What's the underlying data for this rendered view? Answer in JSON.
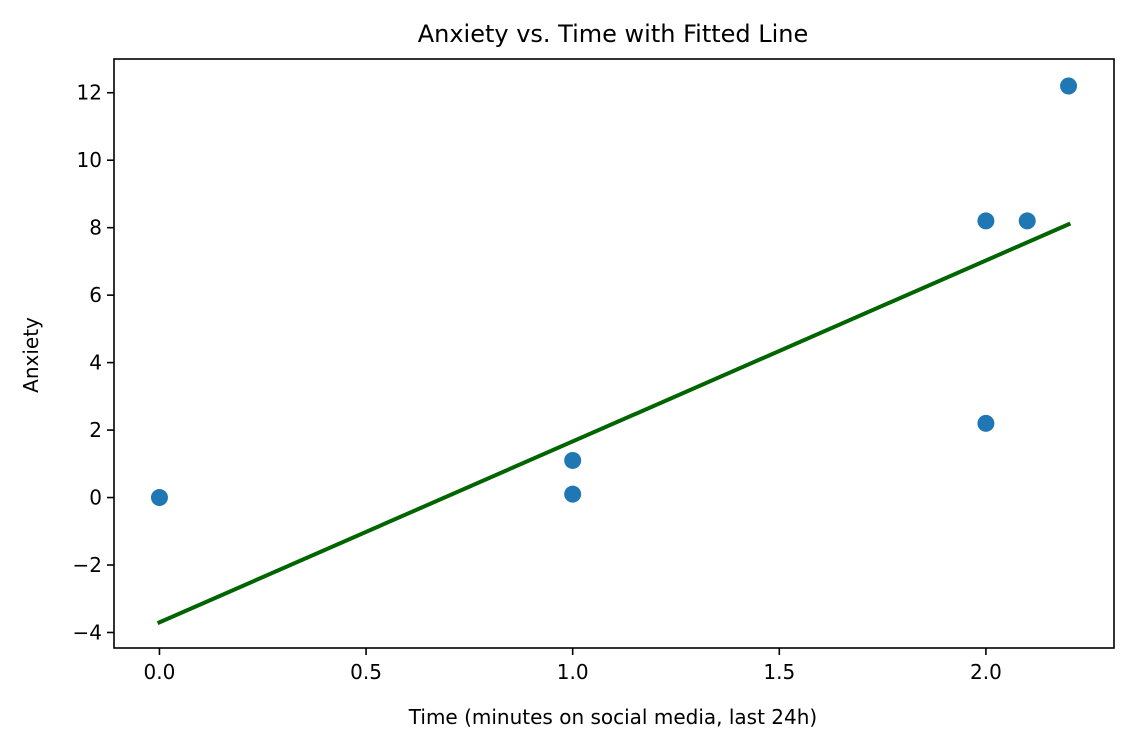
{
  "chart_data": {
    "type": "scatter",
    "title": "Anxiety vs. Time with Fitted Line",
    "xlabel": "Time (minutes on social media, last 24h)",
    "ylabel": "Anxiety",
    "xlim": [
      -0.11,
      2.31
    ],
    "ylim": [
      -4.46,
      13.0
    ],
    "x_ticks": [
      0.0,
      0.5,
      1.0,
      1.5,
      2.0
    ],
    "x_tick_labels": [
      "0.0",
      "0.5",
      "1.0",
      "1.5",
      "2.0"
    ],
    "y_ticks": [
      -4,
      -2,
      0,
      2,
      4,
      6,
      8,
      10,
      12
    ],
    "y_tick_labels": [
      "−4",
      "−2",
      "0",
      "2",
      "4",
      "6",
      "8",
      "10",
      "12"
    ],
    "grid": false,
    "series": [
      {
        "type": "scatter",
        "color": "#1f77b4",
        "points": [
          {
            "x": 0.0,
            "y": 0.0
          },
          {
            "x": 1.0,
            "y": 1.1
          },
          {
            "x": 1.0,
            "y": 0.1
          },
          {
            "x": 2.0,
            "y": 8.2
          },
          {
            "x": 2.1,
            "y": 8.2
          },
          {
            "x": 2.0,
            "y": 2.2
          },
          {
            "x": 2.2,
            "y": 12.2
          }
        ]
      },
      {
        "type": "line",
        "color": "#006400",
        "points": [
          {
            "x": 0.0,
            "y": -3.7
          },
          {
            "x": 2.2,
            "y": 8.1
          }
        ]
      }
    ]
  }
}
